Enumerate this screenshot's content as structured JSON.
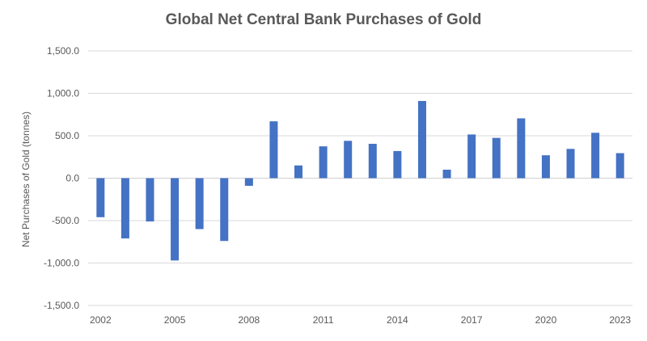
{
  "chart_data": {
    "type": "bar",
    "title": "Global Net Central Bank Purchases of Gold",
    "xlabel": "",
    "ylabel": "Net Purchases of Gold (tonnes)",
    "ylim": [
      -1500,
      1500
    ],
    "ytick_step": 500,
    "ytick_labels": [
      "1,500.0",
      "1,000.0",
      "500.0",
      "0.0",
      "-500.0",
      "-1,000.0",
      "-1,500.0"
    ],
    "categories": [
      "2002",
      "2003",
      "2004",
      "2005",
      "2006",
      "2007",
      "2008",
      "2009",
      "2010",
      "2011",
      "2012",
      "2013",
      "2014",
      "2015",
      "2016",
      "2017",
      "2018",
      "2019",
      "2020",
      "2021",
      "2022",
      "2023"
    ],
    "xtick_labels": [
      "2002",
      "2005",
      "2008",
      "2011",
      "2014",
      "2017",
      "2020",
      "2023"
    ],
    "values": [
      -460,
      -710,
      -510,
      -970,
      -600,
      -740,
      -90,
      670,
      150,
      375,
      440,
      405,
      320,
      910,
      100,
      515,
      475,
      705,
      270,
      345,
      535,
      295
    ],
    "bar_color": "#4472c4",
    "grid": true,
    "legend": "none"
  }
}
